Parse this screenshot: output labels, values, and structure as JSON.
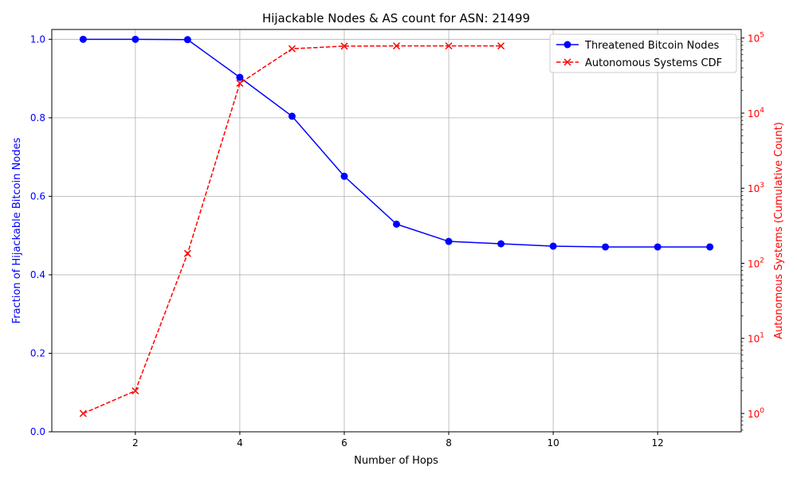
{
  "chart_data": {
    "type": "line",
    "title": "Hijackable Nodes & AS count for ASN: 21499",
    "xlabel": "Number of Hops",
    "ylabel_left": "Fraction of Hijackable Bitcoin Nodes",
    "ylabel_right": "Autonomous Systems (Cumulative Count)",
    "xlim": [
      0.4,
      13.6
    ],
    "ylim_left": [
      0.0,
      1.025
    ],
    "ylim_right": [
      0.57,
      130000
    ],
    "yscale_right": "log",
    "x_ticks": [
      "2",
      "4",
      "6",
      "8",
      "10",
      "12"
    ],
    "x_tick_values": [
      2,
      4,
      6,
      8,
      10,
      12
    ],
    "y_ticks_left": [
      "0.0",
      "0.2",
      "0.4",
      "0.6",
      "0.8",
      "1.0"
    ],
    "y_tick_values_left": [
      0.0,
      0.2,
      0.4,
      0.6,
      0.8,
      1.0
    ],
    "y_ticks_right_exponents": [
      "0",
      "1",
      "2",
      "3",
      "4",
      "5"
    ],
    "y_tick_values_right": [
      1,
      10,
      100,
      1000,
      10000,
      100000
    ],
    "grid": true,
    "legend_position": "top-right",
    "series": [
      {
        "name": "Threatened Bitcoin Nodes",
        "axis": "left",
        "color": "#0000ff",
        "marker": "circle",
        "linestyle": "solid",
        "x": [
          1,
          2,
          3,
          4,
          5,
          6,
          7,
          8,
          9,
          10,
          11,
          12,
          13
        ],
        "values": [
          1.0,
          1.0,
          0.999,
          0.903,
          0.804,
          0.651,
          0.529,
          0.485,
          0.479,
          0.473,
          0.471,
          0.471,
          0.471
        ]
      },
      {
        "name": "Autonomous Systems CDF",
        "axis": "right",
        "color": "#ff0000",
        "marker": "x",
        "linestyle": "dashed",
        "x": [
          1,
          2,
          3,
          4,
          5,
          6,
          7,
          8,
          9
        ],
        "values": [
          1,
          2,
          135,
          25000,
          72000,
          78000,
          78500,
          78500,
          78500
        ]
      }
    ]
  }
}
